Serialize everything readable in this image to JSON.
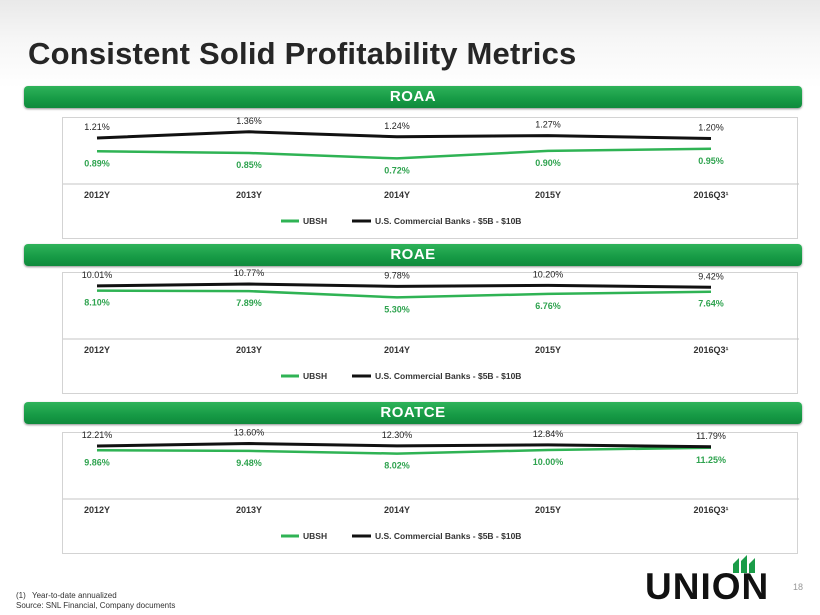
{
  "title": "Consistent Solid Profitability Metrics",
  "legend": {
    "series1": "UBSH",
    "series2": "U.S. Commercial Banks - $5B - $10B"
  },
  "colors": {
    "accent": "#1a9c48",
    "peer": "#111111",
    "ubsh": "#2fb354"
  },
  "chart_data": [
    {
      "type": "line",
      "title": "ROAA",
      "categories": [
        "2012Y",
        "2013Y",
        "2014Y",
        "2015Y",
        "2016Q3¹"
      ],
      "series": [
        {
          "name": "UBSH",
          "values": [
            0.89,
            0.85,
            0.72,
            0.9,
            0.95
          ],
          "labels": [
            "0.89%",
            "0.85%",
            "0.72%",
            "0.90%",
            "0.95%"
          ]
        },
        {
          "name": "U.S. Commercial Banks - $5B - $10B",
          "values": [
            1.21,
            1.36,
            1.24,
            1.27,
            1.2
          ],
          "labels": [
            "1.21%",
            "1.36%",
            "1.24%",
            "1.27%",
            "1.20%"
          ]
        }
      ],
      "ylim": [
        0.2,
        1.5
      ],
      "legend_position": "bottom"
    },
    {
      "type": "line",
      "title": "ROAE",
      "categories": [
        "2012Y",
        "2013Y",
        "2014Y",
        "2015Y",
        "2016Q3¹"
      ],
      "series": [
        {
          "name": "UBSH",
          "values": [
            8.1,
            7.89,
            5.3,
            6.76,
            7.64
          ],
          "labels": [
            "8.10%",
            "7.89%",
            "5.30%",
            "6.76%",
            "7.64%"
          ]
        },
        {
          "name": "U.S. Commercial Banks - $5B - $10B",
          "values": [
            10.01,
            10.77,
            9.78,
            10.2,
            9.42
          ],
          "labels": [
            "10.01%",
            "10.77%",
            "9.78%",
            "10.20%",
            "9.42%"
          ]
        }
      ],
      "ylim": [
        -10,
        12
      ],
      "legend_position": "bottom"
    },
    {
      "type": "line",
      "title": "ROATCE",
      "categories": [
        "2012Y",
        "2013Y",
        "2014Y",
        "2015Y",
        "2016Q3¹"
      ],
      "series": [
        {
          "name": "UBSH",
          "values": [
            9.86,
            9.48,
            8.02,
            10.0,
            11.25
          ],
          "labels": [
            "9.86%",
            "9.48%",
            "8.02%",
            "10.00%",
            "11.25%"
          ]
        },
        {
          "name": "U.S. Commercial Banks - $5B - $10B",
          "values": [
            12.21,
            13.6,
            12.3,
            12.84,
            11.79
          ],
          "labels": [
            "12.21%",
            "13.60%",
            "12.30%",
            "12.84%",
            "11.79%"
          ]
        }
      ],
      "ylim": [
        -15,
        15
      ],
      "legend_position": "bottom"
    }
  ],
  "footnotes": {
    "num": "(1)",
    "note": "Year-to-date annualized",
    "source": "Source:  SNL Financial, Company documents"
  },
  "page_number": "18",
  "logo": {
    "text": "UNION"
  }
}
